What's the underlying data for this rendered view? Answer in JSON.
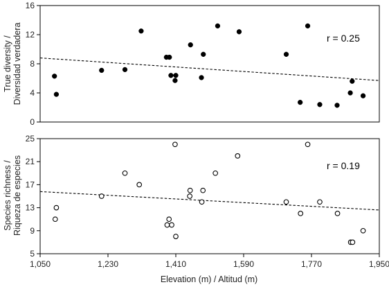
{
  "chart_data": [
    {
      "type": "scatter",
      "ylabel_lines": [
        "True diversity /",
        "Diversidad verdadera"
      ],
      "ylim": [
        0,
        16
      ],
      "yticks": [
        0,
        4,
        8,
        12,
        16
      ],
      "xlim": [
        1050,
        1950
      ],
      "marker": "filled",
      "annotation": "r = 0.25",
      "trendline": {
        "x": [
          1050,
          1950
        ],
        "y": [
          8.8,
          5.7
        ]
      },
      "points": [
        {
          "x": 1088,
          "y": 6.3
        },
        {
          "x": 1093,
          "y": 3.8
        },
        {
          "x": 1213,
          "y": 7.1
        },
        {
          "x": 1275,
          "y": 7.2
        },
        {
          "x": 1318,
          "y": 12.5
        },
        {
          "x": 1385,
          "y": 8.9
        },
        {
          "x": 1393,
          "y": 8.9
        },
        {
          "x": 1397,
          "y": 6.4
        },
        {
          "x": 1408,
          "y": 5.7
        },
        {
          "x": 1410,
          "y": 6.4
        },
        {
          "x": 1449,
          "y": 10.6
        },
        {
          "x": 1478,
          "y": 6.1
        },
        {
          "x": 1483,
          "y": 9.3
        },
        {
          "x": 1521,
          "y": 13.2
        },
        {
          "x": 1578,
          "y": 12.4
        },
        {
          "x": 1703,
          "y": 9.3
        },
        {
          "x": 1740,
          "y": 2.7
        },
        {
          "x": 1760,
          "y": 13.2
        },
        {
          "x": 1792,
          "y": 2.4
        },
        {
          "x": 1838,
          "y": 2.3
        },
        {
          "x": 1873,
          "y": 4.0
        },
        {
          "x": 1878,
          "y": 5.6
        },
        {
          "x": 1907,
          "y": 3.6
        }
      ]
    },
    {
      "type": "scatter",
      "ylabel_lines": [
        "Species richness /",
        "Riqueza de especies"
      ],
      "ylim": [
        5,
        25
      ],
      "yticks": [
        5,
        9,
        13,
        17,
        21,
        25
      ],
      "xlim": [
        1050,
        1950
      ],
      "xticks": [
        1050,
        1230,
        1410,
        1590,
        1770,
        1950
      ],
      "xtick_labels": [
        "1,050",
        "1,230",
        "1,410",
        "1,590",
        "1,770",
        "1,950"
      ],
      "xlabel": "Elevation (m) / Altitud (m)",
      "marker": "open",
      "annotation": "r = 0.19",
      "trendline": {
        "x": [
          1050,
          1950
        ],
        "y": [
          15.8,
          12.6
        ]
      },
      "points": [
        {
          "x": 1090,
          "y": 11
        },
        {
          "x": 1093,
          "y": 13
        },
        {
          "x": 1213,
          "y": 15
        },
        {
          "x": 1275,
          "y": 19
        },
        {
          "x": 1313,
          "y": 17
        },
        {
          "x": 1387,
          "y": 10
        },
        {
          "x": 1392,
          "y": 11
        },
        {
          "x": 1399,
          "y": 10
        },
        {
          "x": 1408,
          "y": 24
        },
        {
          "x": 1410,
          "y": 8
        },
        {
          "x": 1447,
          "y": 15
        },
        {
          "x": 1448,
          "y": 16
        },
        {
          "x": 1479,
          "y": 14
        },
        {
          "x": 1482,
          "y": 16
        },
        {
          "x": 1515,
          "y": 19
        },
        {
          "x": 1574,
          "y": 22
        },
        {
          "x": 1703,
          "y": 14
        },
        {
          "x": 1741,
          "y": 12
        },
        {
          "x": 1760,
          "y": 24
        },
        {
          "x": 1792,
          "y": 14
        },
        {
          "x": 1839,
          "y": 12
        },
        {
          "x": 1874,
          "y": 7
        },
        {
          "x": 1879,
          "y": 7
        },
        {
          "x": 1907,
          "y": 9
        }
      ]
    }
  ]
}
